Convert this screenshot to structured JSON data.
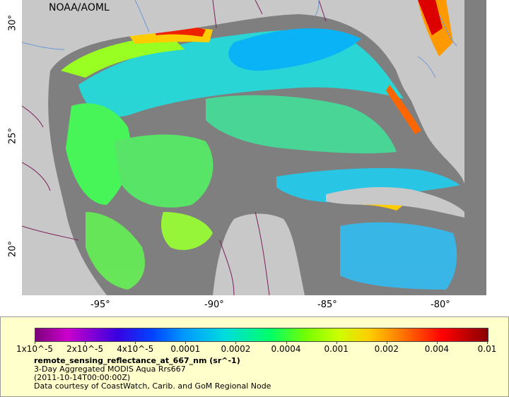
{
  "map": {
    "agency": "NOAA/AOML",
    "lon_ticks": [
      "-95°",
      "-90°",
      "-85°",
      "-80°"
    ],
    "lat_ticks": [
      "30°",
      "25°",
      "20°"
    ]
  },
  "legend": {
    "colorbar_labels": [
      "1x10^-5",
      "2x10^-5",
      "4x10^-5",
      "0.0001",
      "0.0002",
      "0.0004",
      "0.001",
      "0.002",
      "0.004",
      "0.01"
    ],
    "variable": "remote_sensing_reflectance_at_667_nm (sr^-1)",
    "product": "3-Day Aggregated MODIS Aqua Rrs667",
    "time": "(2011-10-14T00:00:00Z)",
    "credit": "Data courtesy of CoastWatch, Carib. and GoM Regional Node"
  },
  "colors": {
    "land": "#c8c8c8",
    "no_data": "#808080",
    "legend_bg": "#ffffcc",
    "borders": "#7a1f5a",
    "rivers": "#6d9ad6"
  }
}
